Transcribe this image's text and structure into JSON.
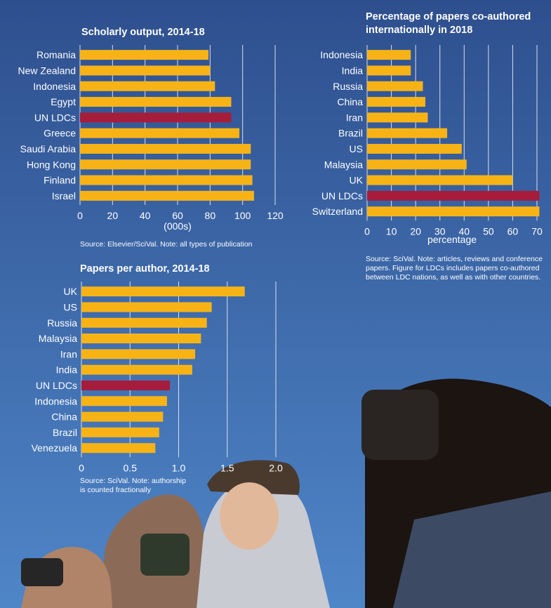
{
  "colors": {
    "bar": "#f7b316",
    "highlight": "#a51d3b",
    "grid": "#d9deea",
    "sky_top": "#2e4f8e",
    "sky_bottom": "#4f86c8"
  },
  "chart_data": [
    {
      "type": "bar",
      "orientation": "horizontal",
      "title": "Scholarly output, 2014-18",
      "categories": [
        "Romania",
        "New Zealand",
        "Indonesia",
        "Egypt",
        "UN LDCs",
        "Greece",
        "Saudi Arabia",
        "Hong Kong",
        "Finland",
        "Israel"
      ],
      "values": [
        79,
        80,
        83,
        93,
        93,
        98,
        105,
        105,
        106,
        107
      ],
      "highlight": "UN LDCs",
      "xlim": [
        0,
        120
      ],
      "xticks": [
        "0",
        "20",
        "40",
        "60",
        "80",
        "100",
        "120"
      ],
      "xlabel": "(000s)",
      "source": "Source: Elsevier/SciVal. Note: all types of publication"
    },
    {
      "type": "bar",
      "orientation": "horizontal",
      "title_lines": [
        "Percentage of papers co-authored",
        "internationally in 2018"
      ],
      "categories": [
        "Indonesia",
        "India",
        "Russia",
        "China",
        "Iran",
        "Brazil",
        "US",
        "Malaysia",
        "UK",
        "UN LDCs",
        "Switzerland"
      ],
      "values": [
        18,
        18,
        23,
        24,
        25,
        33,
        39,
        41,
        60,
        71,
        71
      ],
      "highlight": "UN LDCs",
      "xlim": [
        0,
        70
      ],
      "xticks": [
        "0",
        "10",
        "20",
        "30",
        "40",
        "50",
        "60",
        "70"
      ],
      "xlabel": "percentage",
      "source_lines": [
        "Source: SciVal. Note: articles, reviews and conference",
        "papers. Figure for LDCs includes papers co-authored",
        "between LDC nations, as well as with other countries."
      ]
    },
    {
      "type": "bar",
      "orientation": "horizontal",
      "title": "Papers per author, 2014-18",
      "categories": [
        "UK",
        "US",
        "Russia",
        "Malaysia",
        "Iran",
        "India",
        "UN LDCs",
        "Indonesia",
        "China",
        "Brazil",
        "Venezuela"
      ],
      "values": [
        1.68,
        1.34,
        1.29,
        1.23,
        1.17,
        1.14,
        0.91,
        0.88,
        0.84,
        0.8,
        0.76
      ],
      "highlight": "UN LDCs",
      "xlim": [
        0,
        2.0
      ],
      "xticks": [
        "0",
        "0.5",
        "1.0",
        "1.5",
        "2.0"
      ],
      "xlabel": "",
      "source_lines": [
        "Source: SciVal. Note: authorship",
        "is counted fractionally"
      ]
    }
  ]
}
